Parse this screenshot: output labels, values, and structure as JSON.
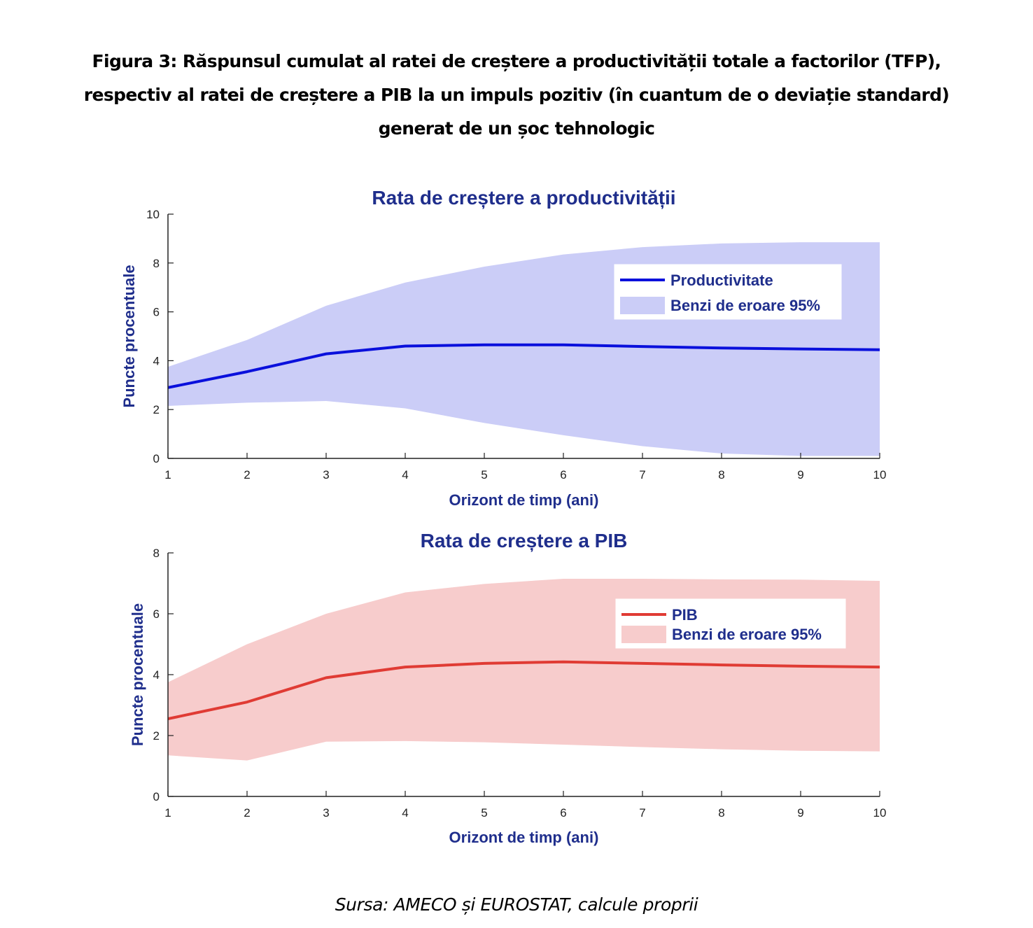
{
  "figure": {
    "title_lines": [
      "Figura 3: Răspunsul cumulat al ratei de creștere a productivității totale a factorilor (TFP),",
      "respectiv al ratei de creștere a PIB la un impuls pozitiv (în cuantum de o deviație standard)",
      "generat de un șoc tehnologic"
    ],
    "source": "Sursa: AMECO și EUROSTAT, calcule proprii"
  },
  "colors": {
    "title_blue": "#1f2e8c",
    "tfp_line": "#0a10dc",
    "tfp_band": "#cbcdf7",
    "gdp_line": "#e03b34",
    "gdp_band": "#f7cccc",
    "axis": "#222222"
  },
  "chart_data": [
    {
      "type": "line",
      "title": "Rata de creștere a productivității",
      "xlabel": "Orizont de timp (ani)",
      "ylabel": "Puncte procentuale",
      "x": [
        1,
        2,
        3,
        4,
        5,
        6,
        7,
        8,
        9,
        10
      ],
      "xlim": [
        1,
        10
      ],
      "ylim": [
        0,
        10
      ],
      "xticks": [
        1,
        2,
        3,
        4,
        5,
        6,
        7,
        8,
        9,
        10
      ],
      "yticks": [
        0,
        2,
        4,
        6,
        8,
        10
      ],
      "grid": false,
      "legend_position": "top-right",
      "series": [
        {
          "name": "Productivitate",
          "kind": "line",
          "values": [
            2.9,
            3.55,
            4.28,
            4.6,
            4.65,
            4.65,
            4.58,
            4.52,
            4.48,
            4.45
          ]
        },
        {
          "name": "Benzi de eroare 95%",
          "kind": "band",
          "upper": [
            3.75,
            4.85,
            6.25,
            7.2,
            7.85,
            8.35,
            8.65,
            8.8,
            8.85,
            8.85
          ],
          "lower": [
            2.15,
            2.28,
            2.35,
            2.05,
            1.45,
            0.95,
            0.5,
            0.2,
            0.1,
            0.1
          ]
        }
      ]
    },
    {
      "type": "line",
      "title": "Rata de creștere a PIB",
      "xlabel": "Orizont de timp (ani)",
      "ylabel": "Puncte procentuale",
      "x": [
        1,
        2,
        3,
        4,
        5,
        6,
        7,
        8,
        9,
        10
      ],
      "xlim": [
        1,
        10
      ],
      "ylim": [
        0,
        8
      ],
      "xticks": [
        1,
        2,
        3,
        4,
        5,
        6,
        7,
        8,
        9,
        10
      ],
      "yticks": [
        0,
        2,
        4,
        6,
        8
      ],
      "grid": false,
      "legend_position": "top-right",
      "series": [
        {
          "name": "PIB",
          "kind": "line",
          "values": [
            2.55,
            3.1,
            3.9,
            4.25,
            4.37,
            4.42,
            4.37,
            4.32,
            4.28,
            4.25
          ]
        },
        {
          "name": "Benzi de eroare 95%",
          "kind": "band",
          "upper": [
            3.75,
            5.0,
            6.0,
            6.7,
            6.98,
            7.15,
            7.15,
            7.13,
            7.12,
            7.08
          ],
          "lower": [
            1.35,
            1.18,
            1.8,
            1.82,
            1.78,
            1.7,
            1.62,
            1.55,
            1.5,
            1.48
          ]
        }
      ]
    }
  ]
}
